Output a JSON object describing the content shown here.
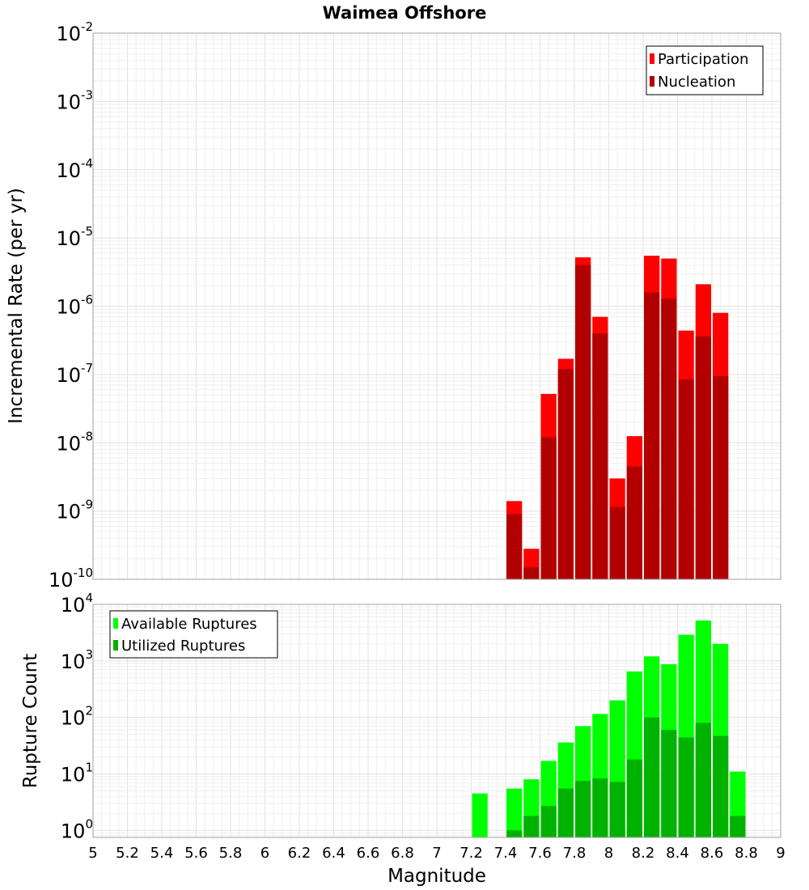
{
  "title": "Waimea Offshore",
  "chart_data": [
    {
      "type": "bar",
      "ylabel": "Incremental Rate (per yr)",
      "yscale": "log",
      "ylim": [
        1e-10,
        0.01
      ],
      "y_ticks": [
        {
          "base": "10",
          "exp": "-2",
          "value": 0.01
        },
        {
          "base": "10",
          "exp": "-3",
          "value": 0.001
        },
        {
          "base": "10",
          "exp": "-4",
          "value": 0.0001
        },
        {
          "base": "10",
          "exp": "-5",
          "value": 1e-05
        },
        {
          "base": "10",
          "exp": "-6",
          "value": 1e-06
        },
        {
          "base": "10",
          "exp": "-7",
          "value": 1e-07
        },
        {
          "base": "10",
          "exp": "-8",
          "value": 1e-08
        },
        {
          "base": "10",
          "exp": "-9",
          "value": 1e-09
        },
        {
          "base": "10",
          "exp": "-10",
          "value": 1e-10
        }
      ],
      "xlim": [
        5,
        9
      ],
      "x": [
        7.45,
        7.55,
        7.65,
        7.75,
        7.85,
        7.95,
        8.05,
        8.15,
        8.25,
        8.35,
        8.45,
        8.55,
        8.65
      ],
      "series": [
        {
          "name": "Participation",
          "color": "#ff0000",
          "values": [
            1.4e-09,
            2.8e-10,
            5.2e-08,
            1.7e-07,
            5.2e-06,
            7e-07,
            3e-09,
            1.25e-08,
            5.5e-06,
            5e-06,
            4.4e-07,
            2.1e-06,
            8e-07
          ]
        },
        {
          "name": "Nucleation",
          "color": "#b20000",
          "values": [
            9e-10,
            1.5e-10,
            1.2e-08,
            1.2e-07,
            4e-06,
            4e-07,
            1.15e-09,
            4.5e-09,
            1.6e-06,
            1.3e-06,
            8.5e-08,
            3.6e-07,
            9.5e-08
          ]
        }
      ],
      "legend": "top-right"
    },
    {
      "type": "bar",
      "ylabel": "Rupture Count",
      "xlabel": "Magnitude",
      "yscale": "log",
      "ylim": [
        0.75,
        10000
      ],
      "y_ticks": [
        {
          "base": "10",
          "exp": "4",
          "value": 10000
        },
        {
          "base": "10",
          "exp": "3",
          "value": 1000
        },
        {
          "base": "10",
          "exp": "2",
          "value": 100
        },
        {
          "base": "10",
          "exp": "1",
          "value": 10
        },
        {
          "base": "10",
          "exp": "0",
          "value": 1
        }
      ],
      "xlim": [
        5,
        9
      ],
      "x_tick_labels": [
        "5",
        "5.2",
        "5.4",
        "5.6",
        "5.8",
        "6",
        "6.2",
        "6.4",
        "6.6",
        "6.8",
        "7",
        "7.2",
        "7.4",
        "7.6",
        "7.8",
        "8",
        "8.2",
        "8.4",
        "8.6",
        "8.8",
        "9"
      ],
      "x": [
        7.25,
        7.45,
        7.55,
        7.65,
        7.75,
        7.85,
        7.95,
        8.05,
        8.15,
        8.25,
        8.35,
        8.45,
        8.55,
        8.65,
        8.75
      ],
      "series": [
        {
          "name": "Available Ruptures",
          "color": "#00ff00",
          "values": [
            4.5,
            5.5,
            8,
            17,
            36,
            70,
            115,
            200,
            650,
            1200,
            870,
            2900,
            5200,
            2000,
            11
          ]
        },
        {
          "name": "Utilized Ruptures",
          "color": "#00b200",
          "values": [
            0,
            1,
            1.8,
            2.7,
            5.5,
            7.5,
            8.3,
            7.2,
            18,
            100,
            60,
            44,
            80,
            47,
            1.8
          ]
        }
      ],
      "legend": "top-left"
    }
  ]
}
